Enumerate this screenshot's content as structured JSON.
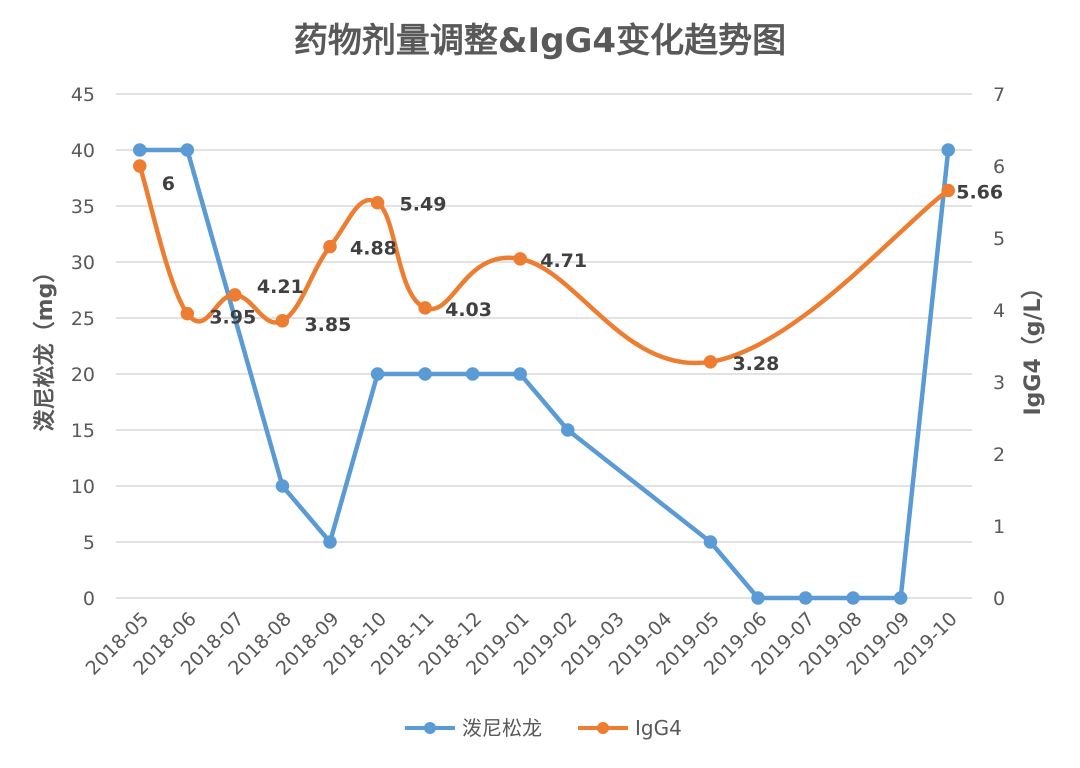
{
  "chart_data": {
    "type": "line",
    "title": "药物剂量调整&IgG4变化趋势图",
    "ylabel": "泼尼松龙（mg）",
    "y2label": "IgG4（g/L）",
    "ylim": [
      0,
      45
    ],
    "y2lim": [
      0,
      7
    ],
    "yticks": [
      "0",
      "5",
      "10",
      "15",
      "20",
      "25",
      "30",
      "35",
      "40",
      "45"
    ],
    "y2ticks": [
      "0",
      "1",
      "2",
      "3",
      "4",
      "5",
      "6",
      "7"
    ],
    "categories": [
      "2018-05",
      "2018-06",
      "2018-07",
      "2018-08",
      "2018-09",
      "2018-10",
      "2018-11",
      "2018-12",
      "2019-01",
      "2019-02",
      "2019-03",
      "2019-04",
      "2019-05",
      "2019-06",
      "2019-07",
      "2019-08",
      "2019-09",
      "2019-10"
    ],
    "grid": true,
    "legend_position": "bottom",
    "series": [
      {
        "name": "泼尼松龙",
        "axis": "left",
        "color": "#5b9bd5",
        "smooth": false,
        "points": [
          {
            "x": "2018-05",
            "y": 40
          },
          {
            "x": "2018-06",
            "y": 40
          },
          {
            "x": "2018-08",
            "y": 10
          },
          {
            "x": "2018-09",
            "y": 5
          },
          {
            "x": "2018-10",
            "y": 20
          },
          {
            "x": "2018-11",
            "y": 20
          },
          {
            "x": "2018-12",
            "y": 20
          },
          {
            "x": "2019-01",
            "y": 20
          },
          {
            "x": "2019-02",
            "y": 15
          },
          {
            "x": "2019-05",
            "y": 5
          },
          {
            "x": "2019-06",
            "y": 0
          },
          {
            "x": "2019-07",
            "y": 0
          },
          {
            "x": "2019-08",
            "y": 0
          },
          {
            "x": "2019-09",
            "y": 0
          },
          {
            "x": "2019-10",
            "y": 40
          }
        ]
      },
      {
        "name": "IgG4",
        "axis": "right",
        "color": "#ed7d31",
        "smooth": true,
        "points": [
          {
            "x": "2018-05",
            "y": 6,
            "label": "6"
          },
          {
            "x": "2018-06",
            "y": 3.95,
            "label": "3.95"
          },
          {
            "x": "2018-07",
            "y": 4.21,
            "label": "4.21"
          },
          {
            "x": "2018-08",
            "y": 3.85,
            "label": "3.85"
          },
          {
            "x": "2018-09",
            "y": 4.88,
            "label": "4.88"
          },
          {
            "x": "2018-10",
            "y": 5.49,
            "label": "5.49"
          },
          {
            "x": "2018-11",
            "y": 4.03,
            "label": "4.03"
          },
          {
            "x": "2019-01",
            "y": 4.71,
            "label": "4.71"
          },
          {
            "x": "2019-05",
            "y": 3.28,
            "label": "3.28"
          },
          {
            "x": "2019-10",
            "y": 5.66,
            "label": "5.66"
          }
        ]
      }
    ]
  }
}
